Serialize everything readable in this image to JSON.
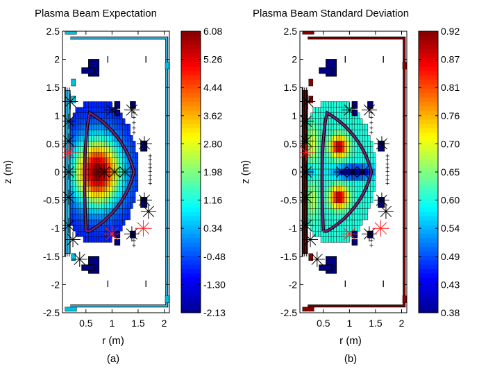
{
  "chart_data": [
    {
      "type": "heatmap",
      "title": "Plasma Beam Expectation",
      "xlabel": "r (m)",
      "ylabel": "z (m)",
      "caption": "(a)",
      "x_ticks": [
        "0.5",
        "1",
        "1.5",
        "2"
      ],
      "x_tick_values": [
        0.5,
        1,
        1.5,
        2
      ],
      "y_ticks": [
        "2.5",
        "2",
        "1.5",
        "1",
        "0.5",
        "0",
        "-0.5",
        "-1",
        "-1.5",
        "-2",
        "-2.5"
      ],
      "y_tick_values": [
        2.5,
        2,
        1.5,
        1,
        0.5,
        0,
        -0.5,
        -1,
        -1.5,
        -2,
        -2.5
      ],
      "xlim": [
        0.05,
        2.1
      ],
      "ylim": [
        -2.5,
        2.5
      ],
      "colorbar_ticks": [
        "6.08",
        "5.26",
        "4.44",
        "3.62",
        "2.80",
        "1.98",
        "1.16",
        "0.34",
        "-0.48",
        "-1.30",
        "-2.13"
      ],
      "colorbar_range": [
        -2.13,
        6.08
      ],
      "field": {
        "center_r": 0.72,
        "center_z": 0.0,
        "peak": 6.08,
        "edge": 0.3,
        "vessel_value": 0.6
      },
      "colormap": [
        "#00008f",
        "#0000ff",
        "#0080ff",
        "#00ffff",
        "#80ff80",
        "#ffff00",
        "#ff8000",
        "#ff0000",
        "#800000"
      ]
    },
    {
      "type": "heatmap",
      "title": "Plasma Beam Standard Deviation",
      "xlabel": "r (m)",
      "ylabel": "z (m)",
      "caption": "(b)",
      "x_ticks": [
        "0.5",
        "1",
        "1.5",
        "2"
      ],
      "x_tick_values": [
        0.5,
        1,
        1.5,
        2
      ],
      "y_ticks": [
        "2.5",
        "2",
        "1.5",
        "1",
        "0.5",
        "0",
        "-0.5",
        "-1",
        "-1.5",
        "-2",
        "-2.5"
      ],
      "y_tick_values": [
        2.5,
        2,
        1.5,
        1,
        0.5,
        0,
        -0.5,
        -1,
        -1.5,
        -2,
        -2.5
      ],
      "xlim": [
        0.05,
        2.1
      ],
      "ylim": [
        -2.5,
        2.5
      ],
      "colorbar_ticks": [
        "0.92",
        "0.87",
        "0.81",
        "0.76",
        "0.70",
        "0.65",
        "0.60",
        "0.54",
        "0.49",
        "0.43",
        "0.38"
      ],
      "colorbar_range": [
        0.38,
        0.92
      ],
      "field": {
        "peak": 0.92,
        "floor": 0.38,
        "vessel_value": 0.92
      },
      "colormap": [
        "#00008f",
        "#0000ff",
        "#0080ff",
        "#00ffff",
        "#80ff80",
        "#ffff00",
        "#ff8000",
        "#ff0000",
        "#800000"
      ]
    }
  ]
}
